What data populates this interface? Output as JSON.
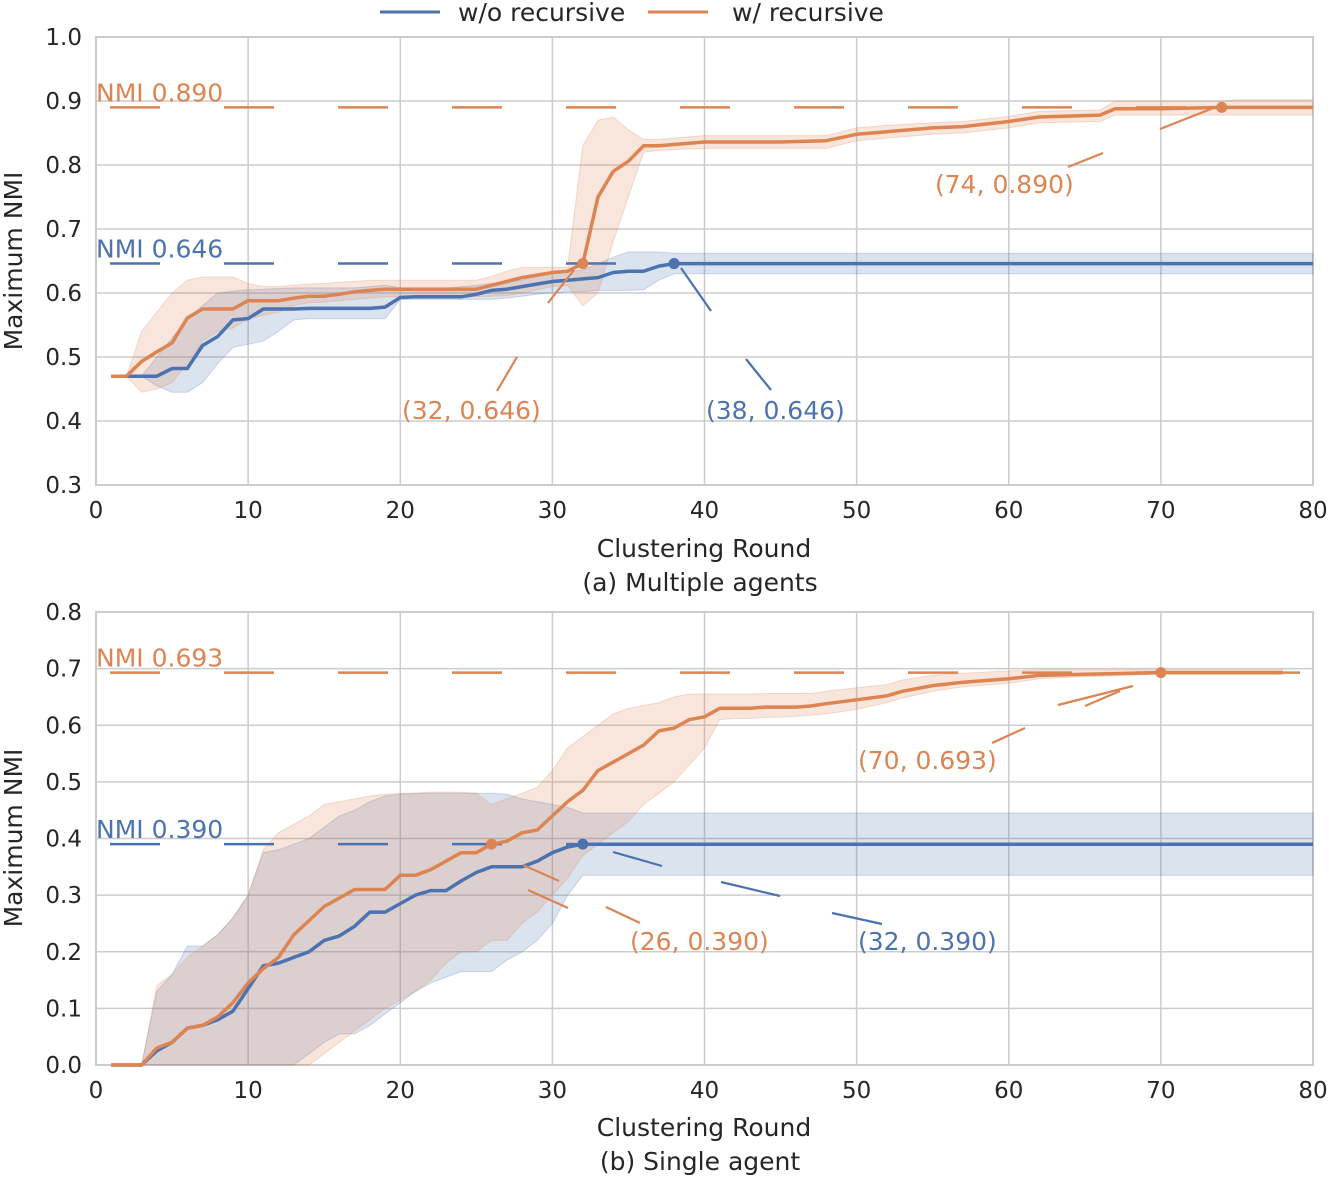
{
  "colors": {
    "blue": "#4c72b0",
    "orange": "#dd8452",
    "grid": "#cccccc",
    "text": "#262626"
  },
  "legend": {
    "position": "top-center",
    "items": [
      {
        "label": "w/o recursive",
        "color": "#4c72b0"
      },
      {
        "label": "w/ recursive",
        "color": "#dd8452"
      }
    ]
  },
  "chart_data": [
    {
      "type": "line",
      "caption": "(a) Multiple agents",
      "xlabel": "Clustering Round",
      "ylabel": "Maximum NMI",
      "xlim": [
        0,
        80
      ],
      "ylim": [
        0.3,
        1.0
      ],
      "xticks": [
        "0",
        "10",
        "20",
        "30",
        "40",
        "50",
        "60",
        "70",
        "80"
      ],
      "yticks": [
        "0.3",
        "0.4",
        "0.5",
        "0.6",
        "0.7",
        "0.8",
        "0.9",
        "1.0"
      ],
      "grid": true,
      "hlines": [
        {
          "label": "NMI 0.890",
          "value": 0.89,
          "series": "w/ recursive"
        },
        {
          "label": "NMI 0.646",
          "value": 0.646,
          "series": "w/o recursive"
        }
      ],
      "annotations": [
        {
          "text": "(74, 0.890)",
          "x": 74,
          "y": 0.89,
          "series": "w/ recursive"
        },
        {
          "text": "(32, 0.646)",
          "x": 32,
          "y": 0.646,
          "series": "w/ recursive"
        },
        {
          "text": "(38, 0.646)",
          "x": 38,
          "y": 0.646,
          "series": "w/o recursive"
        }
      ],
      "series": [
        {
          "name": "w/o recursive",
          "x": [
            1,
            2,
            3,
            4,
            5,
            6,
            7,
            8,
            9,
            10,
            11,
            12,
            13,
            14,
            15,
            16,
            17,
            18,
            19,
            20,
            21,
            22,
            23,
            24,
            25,
            26,
            27,
            28,
            29,
            30,
            31,
            32,
            33,
            34,
            35,
            36,
            37,
            38,
            80
          ],
          "y": [
            0.47,
            0.47,
            0.47,
            0.47,
            0.482,
            0.482,
            0.518,
            0.532,
            0.558,
            0.56,
            0.575,
            0.575,
            0.575,
            0.576,
            0.576,
            0.576,
            0.576,
            0.576,
            0.578,
            0.593,
            0.594,
            0.594,
            0.594,
            0.594,
            0.598,
            0.604,
            0.606,
            0.61,
            0.614,
            0.618,
            0.62,
            0.622,
            0.624,
            0.632,
            0.634,
            0.634,
            0.642,
            0.646,
            0.646
          ],
          "lower": [
            0.47,
            0.47,
            0.47,
            0.455,
            0.445,
            0.445,
            0.46,
            0.49,
            0.515,
            0.52,
            0.525,
            0.54,
            0.558,
            0.56,
            0.56,
            0.56,
            0.56,
            0.56,
            0.56,
            0.59,
            0.59,
            0.59,
            0.59,
            0.59,
            0.59,
            0.59,
            0.592,
            0.595,
            0.598,
            0.6,
            0.602,
            0.602,
            0.604,
            0.604,
            0.604,
            0.605,
            0.62,
            0.63,
            0.63
          ],
          "upper": [
            0.47,
            0.47,
            0.47,
            0.5,
            0.53,
            0.56,
            0.58,
            0.6,
            0.603,
            0.605,
            0.606,
            0.607,
            0.608,
            0.608,
            0.608,
            0.608,
            0.608,
            0.61,
            0.612,
            0.608,
            0.608,
            0.608,
            0.608,
            0.61,
            0.612,
            0.615,
            0.618,
            0.62,
            0.628,
            0.632,
            0.634,
            0.636,
            0.646,
            0.656,
            0.664,
            0.664,
            0.664,
            0.662,
            0.662
          ]
        },
        {
          "name": "w/ recursive",
          "x": [
            1,
            2,
            3,
            4,
            5,
            6,
            7,
            8,
            9,
            10,
            11,
            12,
            13,
            14,
            15,
            16,
            17,
            18,
            19,
            20,
            21,
            22,
            23,
            24,
            25,
            26,
            27,
            28,
            29,
            30,
            31,
            32,
            33,
            34,
            35,
            36,
            37,
            38,
            40,
            45,
            48,
            50,
            52,
            55,
            57,
            60,
            62,
            66,
            67,
            70,
            74,
            75,
            80
          ],
          "y": [
            0.47,
            0.47,
            0.493,
            0.508,
            0.522,
            0.561,
            0.575,
            0.575,
            0.575,
            0.588,
            0.588,
            0.588,
            0.592,
            0.595,
            0.595,
            0.598,
            0.602,
            0.604,
            0.606,
            0.606,
            0.606,
            0.606,
            0.606,
            0.606,
            0.606,
            0.612,
            0.618,
            0.624,
            0.628,
            0.632,
            0.634,
            0.646,
            0.75,
            0.79,
            0.806,
            0.83,
            0.83,
            0.832,
            0.836,
            0.836,
            0.838,
            0.848,
            0.852,
            0.858,
            0.86,
            0.868,
            0.875,
            0.878,
            0.888,
            0.888,
            0.89,
            0.89,
            0.89
          ],
          "lower": [
            0.47,
            0.47,
            0.445,
            0.45,
            0.46,
            0.49,
            0.525,
            0.54,
            0.545,
            0.56,
            0.565,
            0.57,
            0.58,
            0.585,
            0.586,
            0.588,
            0.59,
            0.592,
            0.594,
            0.594,
            0.594,
            0.594,
            0.594,
            0.594,
            0.594,
            0.595,
            0.596,
            0.6,
            0.605,
            0.61,
            0.612,
            0.58,
            0.6,
            0.68,
            0.75,
            0.82,
            0.823,
            0.824,
            0.826,
            0.826,
            0.826,
            0.838,
            0.842,
            0.848,
            0.85,
            0.858,
            0.866,
            0.868,
            0.878,
            0.878,
            0.878,
            0.878,
            0.878
          ],
          "upper": [
            0.47,
            0.47,
            0.54,
            0.57,
            0.6,
            0.62,
            0.625,
            0.625,
            0.625,
            0.615,
            0.61,
            0.61,
            0.612,
            0.614,
            0.615,
            0.617,
            0.618,
            0.62,
            0.62,
            0.62,
            0.62,
            0.62,
            0.62,
            0.62,
            0.62,
            0.626,
            0.634,
            0.64,
            0.64,
            0.64,
            0.64,
            0.83,
            0.87,
            0.875,
            0.855,
            0.84,
            0.84,
            0.842,
            0.846,
            0.846,
            0.846,
            0.858,
            0.862,
            0.866,
            0.868,
            0.876,
            0.884,
            0.886,
            0.9,
            0.9,
            0.9,
            0.902,
            0.902
          ]
        }
      ]
    },
    {
      "type": "line",
      "caption": "(b) Single agent",
      "xlabel": "Clustering Round",
      "ylabel": "Maximum NMI",
      "xlim": [
        0,
        80
      ],
      "ylim": [
        0.0,
        0.8
      ],
      "xticks": [
        "0",
        "10",
        "20",
        "30",
        "40",
        "50",
        "60",
        "70",
        "80"
      ],
      "yticks": [
        "0.0",
        "0.1",
        "0.2",
        "0.3",
        "0.4",
        "0.5",
        "0.6",
        "0.7",
        "0.8"
      ],
      "grid": true,
      "hlines": [
        {
          "label": "NMI 0.693",
          "value": 0.693,
          "series": "w/ recursive"
        },
        {
          "label": "NMI 0.390",
          "value": 0.39,
          "series": "w/o recursive"
        }
      ],
      "annotations": [
        {
          "text": "(70, 0.693)",
          "x": 70,
          "y": 0.693,
          "series": "w/ recursive"
        },
        {
          "text": "(26, 0.390)",
          "x": 26,
          "y": 0.39,
          "series": "w/ recursive"
        },
        {
          "text": "(32, 0.390)",
          "x": 32,
          "y": 0.39,
          "series": "w/o recursive"
        }
      ],
      "series": [
        {
          "name": "w/o recursive",
          "x": [
            1,
            2,
            3,
            4,
            5,
            6,
            7,
            8,
            9,
            10,
            11,
            12,
            13,
            14,
            15,
            16,
            17,
            18,
            19,
            20,
            21,
            22,
            23,
            24,
            25,
            26,
            27,
            28,
            29,
            30,
            31,
            32,
            80
          ],
          "y": [
            0,
            0,
            0,
            0.025,
            0.04,
            0.065,
            0.07,
            0.08,
            0.095,
            0.135,
            0.175,
            0.18,
            0.19,
            0.2,
            0.22,
            0.228,
            0.245,
            0.27,
            0.27,
            0.285,
            0.3,
            0.308,
            0.308,
            0.325,
            0.34,
            0.35,
            0.35,
            0.35,
            0.36,
            0.375,
            0.385,
            0.39,
            0.39
          ],
          "lower": [
            0,
            0,
            0,
            0,
            0,
            0,
            0,
            0,
            0,
            0,
            0,
            0,
            0,
            0.02,
            0.04,
            0.055,
            0.055,
            0.07,
            0.09,
            0.11,
            0.13,
            0.145,
            0.155,
            0.165,
            0.165,
            0.165,
            0.185,
            0.2,
            0.22,
            0.25,
            0.3,
            0.335,
            0.335
          ],
          "upper": [
            0,
            0,
            0,
            0.13,
            0.16,
            0.21,
            0.21,
            0.23,
            0.26,
            0.3,
            0.375,
            0.38,
            0.39,
            0.4,
            0.42,
            0.44,
            0.45,
            0.465,
            0.475,
            0.478,
            0.48,
            0.48,
            0.48,
            0.48,
            0.48,
            0.48,
            0.478,
            0.47,
            0.465,
            0.46,
            0.455,
            0.445,
            0.445
          ]
        },
        {
          "name": "w/ recursive",
          "x": [
            1,
            2,
            3,
            4,
            5,
            6,
            7,
            8,
            9,
            10,
            11,
            12,
            13,
            14,
            15,
            16,
            17,
            18,
            19,
            20,
            21,
            22,
            23,
            24,
            25,
            26,
            27,
            28,
            29,
            30,
            31,
            32,
            33,
            34,
            35,
            36,
            37,
            38,
            39,
            40,
            41,
            42,
            43,
            44,
            45,
            46,
            47,
            48,
            50,
            52,
            53,
            55,
            57,
            60,
            62,
            65,
            70,
            74,
            78
          ],
          "y": [
            0,
            0,
            0,
            0.03,
            0.04,
            0.065,
            0.07,
            0.085,
            0.11,
            0.145,
            0.17,
            0.19,
            0.23,
            0.255,
            0.28,
            0.295,
            0.31,
            0.31,
            0.31,
            0.335,
            0.335,
            0.345,
            0.36,
            0.375,
            0.375,
            0.39,
            0.395,
            0.41,
            0.415,
            0.44,
            0.465,
            0.485,
            0.52,
            0.535,
            0.55,
            0.565,
            0.59,
            0.595,
            0.61,
            0.615,
            0.63,
            0.63,
            0.63,
            0.632,
            0.632,
            0.632,
            0.634,
            0.638,
            0.645,
            0.652,
            0.66,
            0.67,
            0.676,
            0.682,
            0.688,
            0.69,
            0.693,
            0.693,
            0.693
          ],
          "lower": [
            0,
            0,
            0,
            0,
            0,
            0,
            0,
            0,
            0,
            0,
            0,
            0,
            0,
            0,
            0.02,
            0.04,
            0.06,
            0.08,
            0.1,
            0.115,
            0.13,
            0.15,
            0.18,
            0.2,
            0.2,
            0.22,
            0.22,
            0.25,
            0.27,
            0.3,
            0.33,
            0.37,
            0.39,
            0.41,
            0.43,
            0.46,
            0.48,
            0.5,
            0.53,
            0.56,
            0.61,
            0.612,
            0.612,
            0.614,
            0.614,
            0.616,
            0.618,
            0.62,
            0.628,
            0.64,
            0.648,
            0.66,
            0.668,
            0.674,
            0.682,
            0.686,
            0.69,
            0.69,
            0.69
          ],
          "upper": [
            0,
            0,
            0,
            0.14,
            0.16,
            0.19,
            0.21,
            0.23,
            0.26,
            0.3,
            0.38,
            0.41,
            0.425,
            0.44,
            0.46,
            0.465,
            0.47,
            0.475,
            0.478,
            0.48,
            0.48,
            0.482,
            0.482,
            0.482,
            0.48,
            0.46,
            0.47,
            0.48,
            0.49,
            0.52,
            0.56,
            0.58,
            0.6,
            0.62,
            0.63,
            0.635,
            0.64,
            0.65,
            0.655,
            0.655,
            0.655,
            0.655,
            0.655,
            0.656,
            0.656,
            0.656,
            0.656,
            0.66,
            0.666,
            0.672,
            0.68,
            0.688,
            0.692,
            0.696,
            0.698,
            0.698,
            0.698,
            0.698,
            0.698
          ]
        }
      ]
    }
  ]
}
